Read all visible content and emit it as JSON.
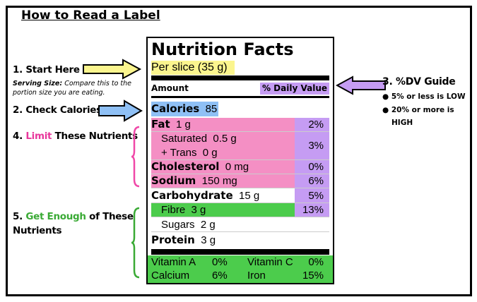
{
  "title": "How to Read a Label",
  "steps": {
    "start": {
      "label": "1. Start Here",
      "note_bold": "Serving Size:",
      "note": " Compare this to the portion size you are eating."
    },
    "calories": {
      "label": "2. Check Calories"
    },
    "dv": {
      "label": "3. %DV Guide",
      "bullets": [
        "5% or less is LOW",
        "20% or more is HIGH"
      ]
    },
    "limit": {
      "num": "4. ",
      "highlight": "Limit",
      "rest": " These Nutrients"
    },
    "enough": {
      "num": "5. ",
      "highlight": "Get Enough",
      "rest": " of These",
      "line2": "Nutrients"
    }
  },
  "colors": {
    "yellow": "#fbf58e",
    "blue": "#8fc0f5",
    "pink": "#f48fc4",
    "purple": "#c59cf3",
    "green": "#4ccc4c",
    "limit_text": "#e8379c",
    "enough_text": "#3aaa35"
  },
  "label": {
    "heading": "Nutrition Facts",
    "serving": "Per slice (35 g)",
    "amount": "Amount",
    "dv": "% Daily Value",
    "calories": {
      "name": "Calories",
      "value": "85"
    },
    "fat": {
      "name": "Fat",
      "value": "1 g",
      "pct": "2%"
    },
    "saturated": {
      "name": "Saturated",
      "value": "0.5 g"
    },
    "trans": {
      "name": "+ Trans",
      "value": "0 g",
      "pct": "3%"
    },
    "cholesterol": {
      "name": "Cholesterol",
      "value": "0 mg",
      "pct": "0%"
    },
    "sodium": {
      "name": "Sodium",
      "value": "150 mg",
      "pct": "6%"
    },
    "carbohydrate": {
      "name": "Carbohydrate",
      "value": "15 g",
      "pct": "5%"
    },
    "fibre": {
      "name": "Fibre",
      "value": "3 g",
      "pct": "13%"
    },
    "sugars": {
      "name": "Sugars",
      "value": "2 g"
    },
    "protein": {
      "name": "Protein",
      "value": "3 g"
    },
    "vitamins": [
      {
        "name": "Vitamin A",
        "pct": "0%"
      },
      {
        "name": "Vitamin C",
        "pct": "0%"
      },
      {
        "name": "Calcium",
        "pct": "6%"
      },
      {
        "name": "Iron",
        "pct": "15%"
      }
    ]
  }
}
